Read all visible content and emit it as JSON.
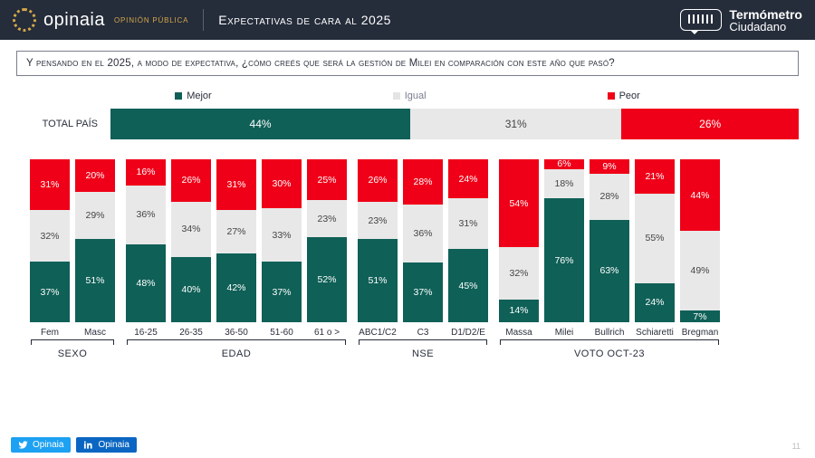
{
  "colors": {
    "mejor": "#0f6057",
    "igual": "#e8e8e8",
    "peor": "#f00018",
    "header_bg": "#252c3a",
    "accent": "#d4a84a"
  },
  "header": {
    "brand": "opinaia",
    "brand_sub": "OPINIÓN PÚBLICA",
    "title": "Expectativas de cara al 2025",
    "product_line1": "Termómetro",
    "product_line2": "Ciudadano"
  },
  "question": "Y pensando en el 2025, a modo de expectativa, ¿cómo creés que será la gestión de Milei en comparación con este año que pasó?",
  "legend": {
    "mejor": "Mejor",
    "igual": "Igual",
    "peor": "Peor"
  },
  "total": {
    "label": "TOTAL PAÍS",
    "mejor": 44,
    "igual": 31,
    "peor": 26
  },
  "groups": [
    {
      "name": "SEXO",
      "cols": [
        {
          "label": "Fem",
          "mejor": 37,
          "igual": 32,
          "peor": 31
        },
        {
          "label": "Masc",
          "mejor": 51,
          "igual": 29,
          "peor": 20
        }
      ]
    },
    {
      "name": "EDAD",
      "cols": [
        {
          "label": "16-25",
          "mejor": 48,
          "igual": 36,
          "peor": 16
        },
        {
          "label": "26-35",
          "mejor": 40,
          "igual": 34,
          "peor": 26
        },
        {
          "label": "36-50",
          "mejor": 42,
          "igual": 27,
          "peor": 31
        },
        {
          "label": "51-60",
          "mejor": 37,
          "igual": 33,
          "peor": 30
        },
        {
          "label": "61 o >",
          "mejor": 52,
          "igual": 23,
          "peor": 25
        }
      ]
    },
    {
      "name": "NSE",
      "cols": [
        {
          "label": "ABC1/C2",
          "mejor": 51,
          "igual": 23,
          "peor": 26
        },
        {
          "label": "C3",
          "mejor": 37,
          "igual": 36,
          "peor": 28
        },
        {
          "label": "D1/D2/E",
          "mejor": 45,
          "igual": 31,
          "peor": 24
        }
      ]
    },
    {
      "name": "VOTO OCT-23",
      "cols": [
        {
          "label": "Massa",
          "mejor": 14,
          "igual": 32,
          "peor": 54
        },
        {
          "label": "Milei",
          "mejor": 76,
          "igual": 18,
          "peor": 6
        },
        {
          "label": "Bullrich",
          "mejor": 63,
          "igual": 28,
          "peor": 9
        },
        {
          "label": "Schiaretti",
          "mejor": 24,
          "igual": 55,
          "peor": 21
        },
        {
          "label": "Bregman",
          "mejor": 7,
          "igual": 49,
          "peor": 44
        }
      ]
    }
  ],
  "social": {
    "twitter": "Opinaia",
    "linkedin": "Opinaia"
  },
  "page_number": "11"
}
